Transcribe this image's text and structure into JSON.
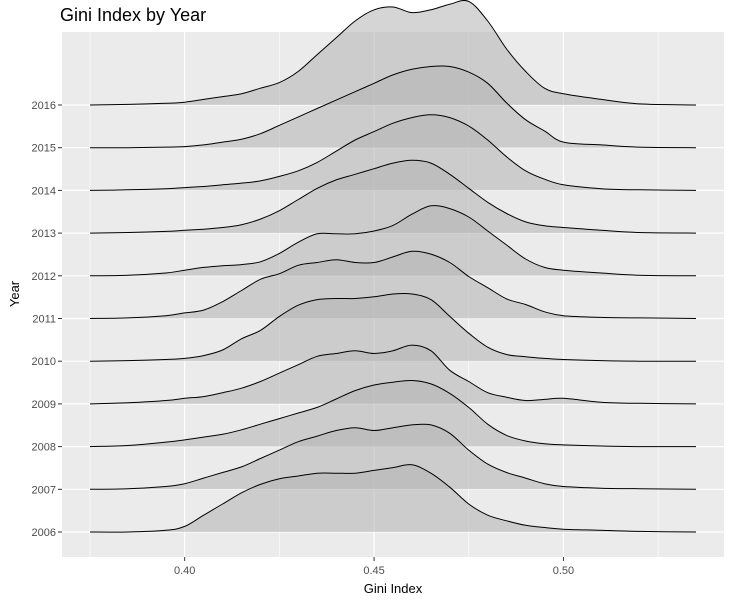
{
  "chart_data": {
    "type": "ridgeline",
    "title": "Gini Index by Year",
    "xlabel": "Gini Index",
    "ylabel": "Year",
    "xlim": [
      0.375,
      0.535
    ],
    "x_ticks": [
      0.4,
      0.45,
      0.5
    ],
    "x_tick_labels": [
      "0.40",
      "0.45",
      "0.50"
    ],
    "grid": true,
    "colors": {
      "panel": "#ebebeb",
      "grid": "#ffffff",
      "fill": "#b3b3b3",
      "fill_opacity": "0.55",
      "line": "#000000"
    },
    "x": [
      0.375,
      0.385,
      0.395,
      0.4,
      0.405,
      0.41,
      0.415,
      0.42,
      0.425,
      0.43,
      0.435,
      0.44,
      0.445,
      0.45,
      0.455,
      0.46,
      0.465,
      0.47,
      0.475,
      0.48,
      0.485,
      0.49,
      0.495,
      0.5,
      0.51,
      0.52,
      0.535
    ],
    "series": [
      {
        "name": "2006",
        "values": [
          0.0,
          0.0,
          0.03,
          0.1,
          0.3,
          0.5,
          0.7,
          0.85,
          0.95,
          1.0,
          1.05,
          1.05,
          1.05,
          1.1,
          1.15,
          1.2,
          1.05,
          0.8,
          0.5,
          0.3,
          0.2,
          0.12,
          0.08,
          0.05,
          0.03,
          0.01,
          0.0
        ]
      },
      {
        "name": "2007",
        "values": [
          0.0,
          0.01,
          0.05,
          0.1,
          0.2,
          0.3,
          0.4,
          0.55,
          0.7,
          0.85,
          0.95,
          1.05,
          1.1,
          1.05,
          1.1,
          1.15,
          1.15,
          1.0,
          0.7,
          0.45,
          0.3,
          0.2,
          0.1,
          0.05,
          0.02,
          0.01,
          0.0
        ]
      },
      {
        "name": "2008",
        "values": [
          0.0,
          0.02,
          0.08,
          0.12,
          0.17,
          0.22,
          0.3,
          0.4,
          0.5,
          0.6,
          0.7,
          0.85,
          1.0,
          1.1,
          1.15,
          1.18,
          1.12,
          0.95,
          0.7,
          0.4,
          0.2,
          0.1,
          0.05,
          0.03,
          0.01,
          0.0,
          0.0
        ]
      },
      {
        "name": "2009",
        "values": [
          0.0,
          0.02,
          0.06,
          0.1,
          0.13,
          0.2,
          0.28,
          0.4,
          0.55,
          0.7,
          0.85,
          0.9,
          0.95,
          0.9,
          0.95,
          1.05,
          0.95,
          0.6,
          0.4,
          0.2,
          0.12,
          0.06,
          0.08,
          0.1,
          0.03,
          0.01,
          0.0
        ]
      },
      {
        "name": "2010",
        "values": [
          0.0,
          0.01,
          0.03,
          0.05,
          0.1,
          0.2,
          0.4,
          0.55,
          0.8,
          1.0,
          1.1,
          1.12,
          1.12,
          1.15,
          1.2,
          1.2,
          1.1,
          0.8,
          0.5,
          0.25,
          0.12,
          0.08,
          0.05,
          0.03,
          0.01,
          0.0,
          0.0
        ]
      },
      {
        "name": "2011",
        "values": [
          0.0,
          0.01,
          0.05,
          0.1,
          0.15,
          0.3,
          0.5,
          0.7,
          0.8,
          0.95,
          1.0,
          1.05,
          1.0,
          1.0,
          1.1,
          1.2,
          1.15,
          1.0,
          0.75,
          0.55,
          0.35,
          0.25,
          0.12,
          0.05,
          0.02,
          0.01,
          0.0
        ]
      },
      {
        "name": "2012",
        "values": [
          0.0,
          0.01,
          0.05,
          0.1,
          0.15,
          0.18,
          0.2,
          0.25,
          0.4,
          0.6,
          0.75,
          0.75,
          0.75,
          0.8,
          0.9,
          1.1,
          1.25,
          1.2,
          1.05,
          0.8,
          0.55,
          0.3,
          0.15,
          0.1,
          0.05,
          0.01,
          0.0
        ]
      },
      {
        "name": "2013",
        "values": [
          0.0,
          0.01,
          0.03,
          0.05,
          0.07,
          0.1,
          0.15,
          0.25,
          0.4,
          0.6,
          0.8,
          0.95,
          1.05,
          1.15,
          1.25,
          1.3,
          1.25,
          1.05,
          0.8,
          0.55,
          0.35,
          0.2,
          0.13,
          0.1,
          0.05,
          0.01,
          0.0
        ]
      },
      {
        "name": "2014",
        "values": [
          0.0,
          0.01,
          0.03,
          0.05,
          0.07,
          0.1,
          0.13,
          0.17,
          0.25,
          0.35,
          0.5,
          0.7,
          0.9,
          1.05,
          1.2,
          1.3,
          1.35,
          1.3,
          1.15,
          0.9,
          0.6,
          0.35,
          0.2,
          0.1,
          0.03,
          0.01,
          0.0
        ]
      },
      {
        "name": "2015",
        "values": [
          0.0,
          0.0,
          0.01,
          0.02,
          0.05,
          0.1,
          0.15,
          0.25,
          0.4,
          0.55,
          0.7,
          0.85,
          1.0,
          1.15,
          1.3,
          1.4,
          1.45,
          1.45,
          1.35,
          1.15,
          0.8,
          0.5,
          0.3,
          0.1,
          0.05,
          0.01,
          0.0
        ]
      },
      {
        "name": "2016",
        "values": [
          0.0,
          0.01,
          0.03,
          0.05,
          0.1,
          0.15,
          0.2,
          0.3,
          0.4,
          0.6,
          0.9,
          1.2,
          1.5,
          1.7,
          1.75,
          1.65,
          1.7,
          1.8,
          1.85,
          1.5,
          1.0,
          0.6,
          0.3,
          0.2,
          0.1,
          0.02,
          0.0
        ]
      }
    ]
  }
}
